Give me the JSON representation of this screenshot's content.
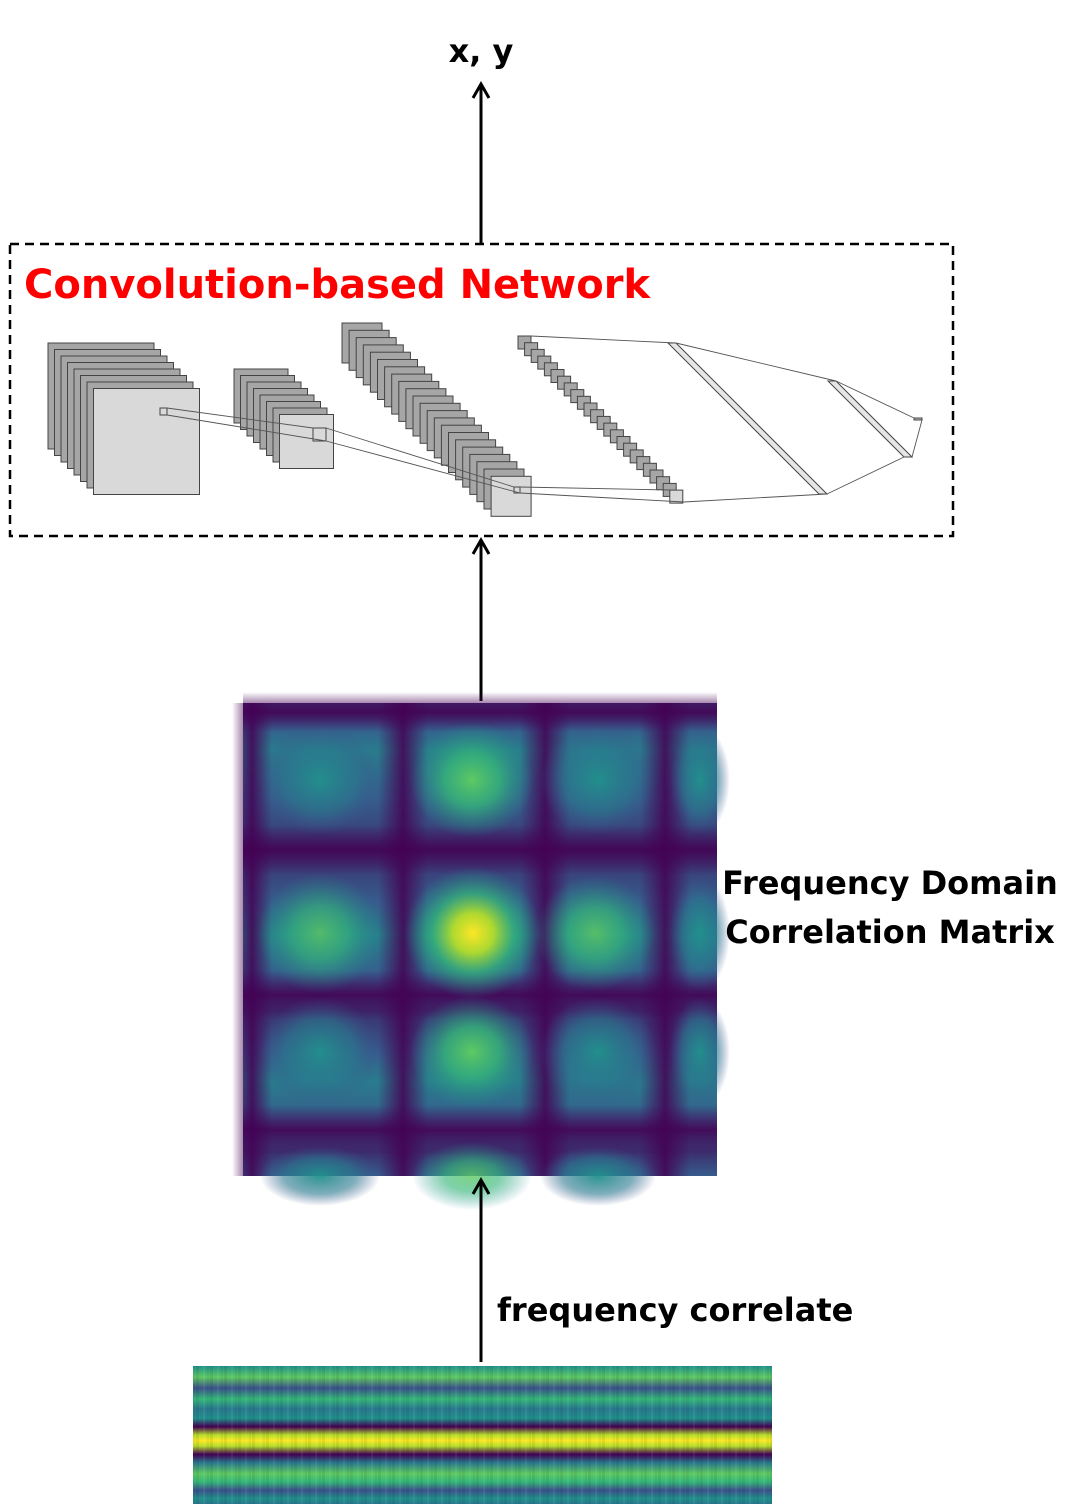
{
  "output_label": "x, y",
  "network": {
    "title": "Convolution-based Network",
    "title_color": "#ff0000"
  },
  "matrix_label": {
    "line1": "Frequency Domain",
    "line2": "Correlation Matrix"
  },
  "edge_label": "frequency correlate",
  "colors": {
    "arrow": "#000000",
    "dashed_border": "#000000",
    "layer_fill_dark": "#a6a6a6",
    "layer_fill_light": "#d9d9d9",
    "layer_stroke": "#444444"
  },
  "icons": {
    "arrow_up": "arrow-up-icon"
  }
}
